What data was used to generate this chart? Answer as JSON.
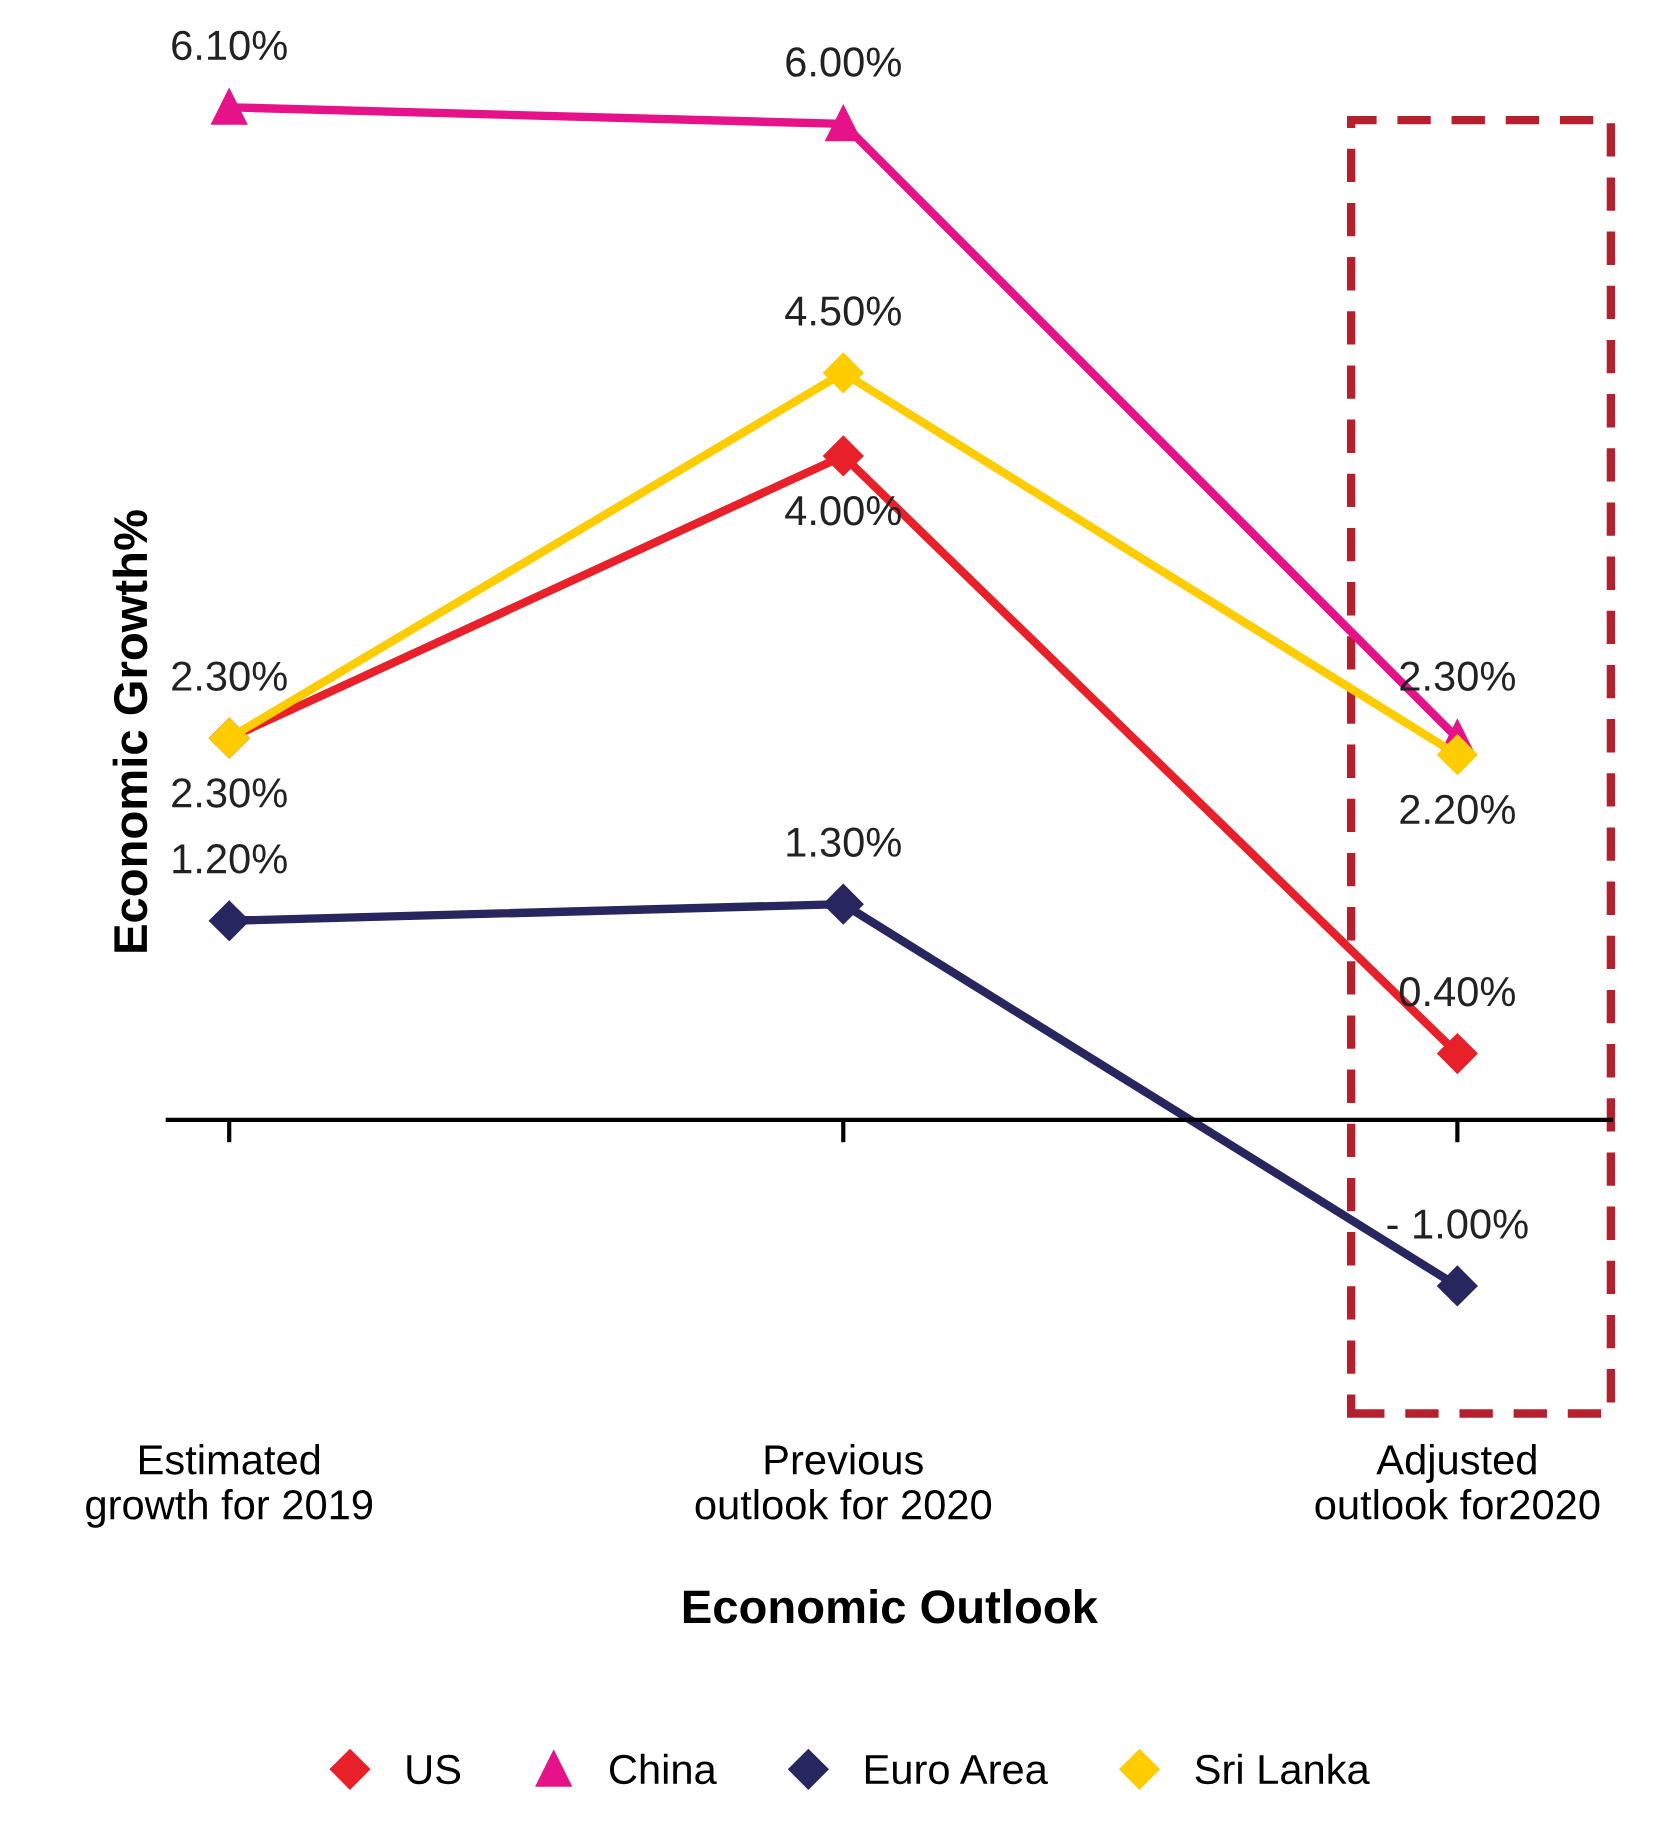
{
  "chart_data": {
    "type": "line",
    "categories": [
      "Estimated\ngrowth for 2019",
      "Previous\noutlook for 2020",
      "Adjusted\noutlook for2020"
    ],
    "xlabel": "Economic Outlook",
    "ylabel": "Economic Growth%",
    "series": [
      {
        "name": "US",
        "color": "#e8202a",
        "marker": "diamond",
        "values": [
          2.3,
          4.0,
          0.4
        ],
        "value_labels": [
          "2.30%",
          "4.00%",
          "0.40%"
        ]
      },
      {
        "name": "China",
        "color": "#e5128a",
        "marker": "triangle",
        "values": [
          6.1,
          6.0,
          2.3
        ],
        "value_labels": [
          "6.10%",
          "6.00%",
          "2.30%"
        ]
      },
      {
        "name": "Euro Area",
        "color": "#27265f",
        "marker": "diamond",
        "values": [
          1.2,
          1.3,
          -1.0
        ],
        "value_labels": [
          "1.20%",
          "1.30%",
          "- 1.00%"
        ]
      },
      {
        "name": "Sri Lanka",
        "color": "#ffcc00",
        "marker": "diamond",
        "values": [
          2.3,
          4.5,
          2.2
        ],
        "value_labels": [
          "2.30%",
          "4.50%",
          "2.20%"
        ]
      }
    ],
    "legend": "bottom",
    "grid": false
  }
}
